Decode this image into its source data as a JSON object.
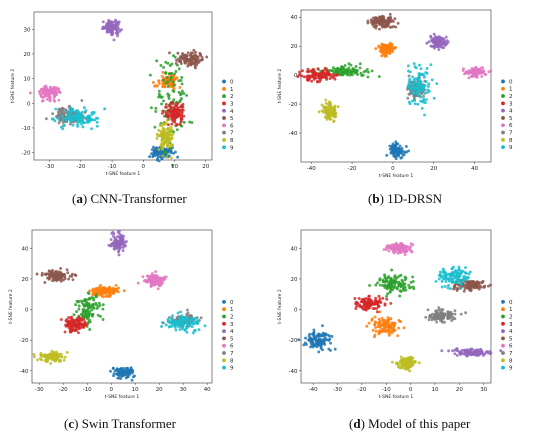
{
  "palette": [
    "#1f77b4",
    "#ff7f0e",
    "#2ca02c",
    "#d62728",
    "#9467bd",
    "#8c564b",
    "#e377c2",
    "#7f7f7f",
    "#bcbd22",
    "#17becf"
  ],
  "chart_data": [
    {
      "type": "scatter",
      "caption_tag": "a",
      "caption_text": "CNN-Transformer",
      "xlabel": "t-SNE feature 1",
      "ylabel": "t-SNE feature 2",
      "xlim": [
        -35,
        22
      ],
      "ylim": [
        -23,
        37
      ],
      "xticks": [
        -30,
        -20,
        -10,
        0,
        10,
        20
      ],
      "yticks": [
        -20,
        -10,
        0,
        10,
        20,
        30
      ],
      "legend": [
        "0",
        "1",
        "2",
        "3",
        "4",
        "5",
        "6",
        "7",
        "8",
        "9"
      ],
      "legend_position": "right",
      "clusters": [
        {
          "label": 0,
          "x": 6,
          "y": -20,
          "sx": 1.6,
          "sy": 1.2
        },
        {
          "label": 1,
          "x": 8,
          "y": 9,
          "sx": 1.5,
          "sy": 1.2
        },
        {
          "label": 2,
          "x": 9,
          "y": 0,
          "sx": 2.5,
          "sy": 9
        },
        {
          "label": 3,
          "x": 10,
          "y": -4,
          "sx": 1.5,
          "sy": 2
        },
        {
          "label": 4,
          "x": -10,
          "y": 31,
          "sx": 1.4,
          "sy": 1.3
        },
        {
          "label": 5,
          "x": 15,
          "y": 18,
          "sx": 2,
          "sy": 1.3
        },
        {
          "label": 6,
          "x": -30,
          "y": 4,
          "sx": 1.6,
          "sy": 1.3
        },
        {
          "label": 7,
          "x": -24,
          "y": -5,
          "sx": 2.8,
          "sy": 1.6
        },
        {
          "label": 8,
          "x": 7,
          "y": -14,
          "sx": 1.3,
          "sy": 3
        },
        {
          "label": 9,
          "x": -21,
          "y": -6,
          "sx": 3,
          "sy": 1.8
        }
      ]
    },
    {
      "type": "scatter",
      "caption_tag": "b",
      "caption_text": "1D-DRSN",
      "xlabel": "t-SNE feature 1",
      "ylabel": "t-SNE feature 2",
      "xlim": [
        -45,
        48
      ],
      "ylim": [
        -60,
        45
      ],
      "xticks": [
        -40,
        -20,
        0,
        20,
        40
      ],
      "yticks": [
        -40,
        -20,
        0,
        20,
        40
      ],
      "legend": [
        "0",
        "1",
        "2",
        "3",
        "4",
        "5",
        "6",
        "7",
        "8",
        "9"
      ],
      "legend_position": "right",
      "clusters": [
        {
          "label": 0,
          "x": 2,
          "y": -52,
          "sx": 1.6,
          "sy": 2
        },
        {
          "label": 1,
          "x": -3,
          "y": 18,
          "sx": 2,
          "sy": 2
        },
        {
          "label": 2,
          "x": -25,
          "y": 3,
          "sx": 6,
          "sy": 2
        },
        {
          "label": 3,
          "x": -37,
          "y": 0,
          "sx": 4,
          "sy": 2
        },
        {
          "label": 4,
          "x": 22,
          "y": 23,
          "sx": 2.2,
          "sy": 2
        },
        {
          "label": 5,
          "x": -5,
          "y": 37,
          "sx": 3,
          "sy": 2
        },
        {
          "label": 6,
          "x": 41,
          "y": 2,
          "sx": 2.5,
          "sy": 1.5
        },
        {
          "label": 7,
          "x": 11,
          "y": -10,
          "sx": 2,
          "sy": 3
        },
        {
          "label": 8,
          "x": -31,
          "y": -25,
          "sx": 1.6,
          "sy": 3
        },
        {
          "label": 9,
          "x": 13,
          "y": -8,
          "sx": 2.5,
          "sy": 7
        }
      ]
    },
    {
      "type": "scatter",
      "caption_tag": "c",
      "caption_text": "Swin Transformer",
      "xlabel": "t-SNE feature 1",
      "ylabel": "t-SNE feature 2",
      "xlim": [
        -33,
        42
      ],
      "ylim": [
        -48,
        52
      ],
      "xticks": [
        -30,
        -20,
        -10,
        0,
        10,
        20,
        30,
        40
      ],
      "yticks": [
        -40,
        -20,
        0,
        20,
        40
      ],
      "legend": [
        "0",
        "1",
        "2",
        "3",
        "4",
        "5",
        "6",
        "7",
        "8",
        "9"
      ],
      "legend_position": "right",
      "clusters": [
        {
          "label": 0,
          "x": 5,
          "y": -41,
          "sx": 2,
          "sy": 1.6
        },
        {
          "label": 1,
          "x": -3,
          "y": 12,
          "sx": 2.5,
          "sy": 1.6
        },
        {
          "label": 2,
          "x": -10,
          "y": 0,
          "sx": 2.5,
          "sy": 5
        },
        {
          "label": 3,
          "x": -15,
          "y": -10,
          "sx": 2,
          "sy": 2.5
        },
        {
          "label": 4,
          "x": 3,
          "y": 44,
          "sx": 1.4,
          "sy": 2.5
        },
        {
          "label": 5,
          "x": -23,
          "y": 22,
          "sx": 3,
          "sy": 1.5
        },
        {
          "label": 6,
          "x": 18,
          "y": 19,
          "sx": 2,
          "sy": 2
        },
        {
          "label": 7,
          "x": 30,
          "y": -7,
          "sx": 2.5,
          "sy": 2
        },
        {
          "label": 8,
          "x": -25,
          "y": -31,
          "sx": 2.5,
          "sy": 1.5
        },
        {
          "label": 9,
          "x": 30,
          "y": -9,
          "sx": 3.5,
          "sy": 2.5
        }
      ]
    },
    {
      "type": "scatter",
      "caption_tag": "d",
      "caption_text": "Model of this paper",
      "xlabel": "t-SNE feature 1",
      "ylabel": "t-SNE feature 2",
      "xlim": [
        -45,
        33
      ],
      "ylim": [
        -48,
        52
      ],
      "xticks": [
        -40,
        -30,
        -20,
        -10,
        0,
        10,
        20,
        30
      ],
      "yticks": [
        -40,
        -20,
        0,
        20,
        40
      ],
      "legend": [
        "0",
        "1",
        "2",
        "3",
        "4",
        "5",
        "6",
        "7",
        "8",
        "9"
      ],
      "legend_position": "right",
      "clusters": [
        {
          "label": 0,
          "x": -38,
          "y": -20,
          "sx": 2.5,
          "sy": 3
        },
        {
          "label": 1,
          "x": -10,
          "y": -11,
          "sx": 3,
          "sy": 3
        },
        {
          "label": 2,
          "x": -7,
          "y": 17,
          "sx": 3.5,
          "sy": 3
        },
        {
          "label": 3,
          "x": -17,
          "y": 4,
          "sx": 3,
          "sy": 2.5
        },
        {
          "label": 4,
          "x": 25,
          "y": -28,
          "sx": 3.5,
          "sy": 1.2
        },
        {
          "label": 5,
          "x": 24,
          "y": 16,
          "sx": 3,
          "sy": 1.5
        },
        {
          "label": 6,
          "x": -5,
          "y": 40,
          "sx": 2.5,
          "sy": 2
        },
        {
          "label": 7,
          "x": 13,
          "y": -4,
          "sx": 3,
          "sy": 2
        },
        {
          "label": 8,
          "x": -2,
          "y": -35,
          "sx": 2,
          "sy": 2
        },
        {
          "label": 9,
          "x": 18,
          "y": 22,
          "sx": 3.5,
          "sy": 3
        }
      ]
    }
  ]
}
